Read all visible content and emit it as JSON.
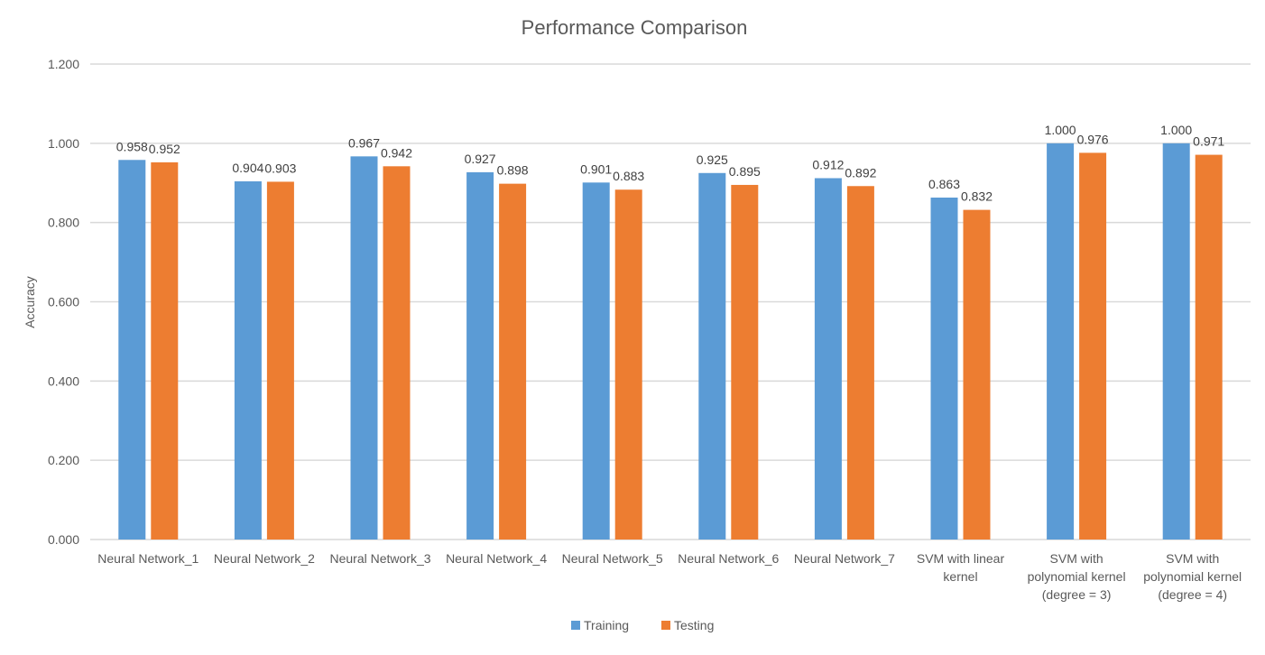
{
  "chart_data": {
    "type": "bar",
    "title": "Performance Comparison",
    "xlabel": "",
    "ylabel": "Accuracy",
    "ylim": [
      0,
      1.2
    ],
    "yticks": [
      0,
      0.2,
      0.4,
      0.6,
      0.8,
      1.0,
      1.2
    ],
    "ytick_labels": [
      "0.000",
      "0.200",
      "0.400",
      "0.600",
      "0.800",
      "1.000",
      "1.200"
    ],
    "grid": true,
    "legend_position": "bottom",
    "categories": [
      [
        "Neural Network_1"
      ],
      [
        "Neural Network_2"
      ],
      [
        "Neural Network_3"
      ],
      [
        "Neural Network_4"
      ],
      [
        "Neural Network_5"
      ],
      [
        "Neural Network_6"
      ],
      [
        "Neural Network_7"
      ],
      [
        "SVM with linear",
        "kernel"
      ],
      [
        "SVM with",
        "polynomial kernel",
        "(degree = 3)"
      ],
      [
        "SVM with",
        "polynomial kernel",
        "(degree = 4)"
      ]
    ],
    "series": [
      {
        "name": "Training",
        "color": "#5b9bd5",
        "values": [
          0.958,
          0.904,
          0.967,
          0.927,
          0.901,
          0.925,
          0.912,
          0.863,
          1.0,
          1.0
        ],
        "labels": [
          "0.958",
          "0.904",
          "0.967",
          "0.927",
          "0.901",
          "0.925",
          "0.912",
          "0.863",
          "1.000",
          "1.000"
        ]
      },
      {
        "name": "Testing",
        "color": "#ed7d31",
        "values": [
          0.952,
          0.903,
          0.942,
          0.898,
          0.883,
          0.895,
          0.892,
          0.832,
          0.976,
          0.971
        ],
        "labels": [
          "0.952",
          "0.903",
          "0.942",
          "0.898",
          "0.883",
          "0.895",
          "0.892",
          "0.832",
          "0.976",
          "0.971"
        ]
      }
    ]
  }
}
